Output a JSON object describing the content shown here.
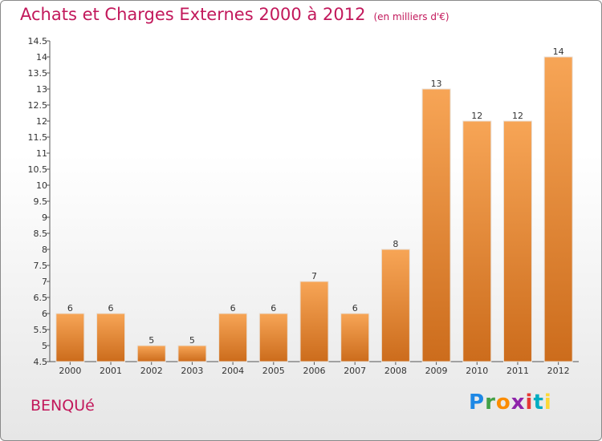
{
  "title": "Achats et Charges Externes 2000 à 2012",
  "unit": "(en milliers d'€)",
  "commune": "BENQUé",
  "logo": {
    "letters": [
      "P",
      "r",
      "o",
      "x",
      "i",
      "t",
      "i"
    ]
  },
  "colors": {
    "title": "#c2185b",
    "bar_top": "#f7a556",
    "bar_bottom": "#cc6c1c"
  },
  "chart_data": {
    "type": "bar",
    "title": "Achats et Charges Externes 2000 à 2012",
    "subtitle": "(en milliers d'€)",
    "categories": [
      "2000",
      "2001",
      "2002",
      "2003",
      "2004",
      "2005",
      "2006",
      "2007",
      "2008",
      "2009",
      "2010",
      "2011",
      "2012"
    ],
    "values": [
      6,
      6,
      5,
      5,
      6,
      6,
      7,
      6,
      8,
      13,
      12,
      12,
      14
    ],
    "value_labels": [
      "6",
      "6",
      "5",
      "5",
      "6",
      "6",
      "7",
      "6",
      "8",
      "13",
      "12",
      "12",
      "14"
    ],
    "ylim": [
      4.5,
      14.5
    ],
    "yticks": [
      4.5,
      5,
      5.5,
      6,
      6.5,
      7,
      7.5,
      8,
      8.5,
      9,
      9.5,
      10,
      10.5,
      11,
      11.5,
      12,
      12.5,
      13,
      13.5,
      14,
      14.5
    ],
    "ytick_labels": [
      "4.5",
      "5",
      "5.5",
      "6",
      "6.5",
      "7",
      "7.5",
      "8",
      "8.5",
      "9",
      "9.5",
      "10",
      "10.5",
      "11",
      "11.5",
      "12",
      "12.5",
      "13",
      "13.5",
      "14",
      "14.5"
    ],
    "grid": false,
    "xlabel": "",
    "ylabel": ""
  }
}
